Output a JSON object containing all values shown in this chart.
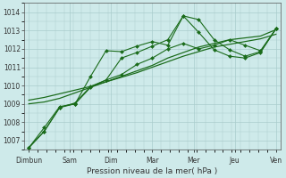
{
  "xlabel": "Pression niveau de la mer( hPa )",
  "background_color": "#ceeaea",
  "grid_color": "#aacccc",
  "line_color": "#1a6b1a",
  "ylim": [
    1006.5,
    1014.5
  ],
  "xtick_labels": [
    "Dimbun",
    "Sam",
    "Dim",
    "Mar",
    "Mer",
    "Jeu",
    "Ven"
  ],
  "ytick_values": [
    1007,
    1008,
    1009,
    1010,
    1011,
    1012,
    1013,
    1014
  ],
  "series": [
    [
      1006.6,
      1007.7,
      1008.85,
      1009.0,
      1010.5,
      1011.9,
      1011.85,
      1012.15,
      1012.4,
      1012.2,
      1013.8,
      1012.9,
      1011.95,
      1011.6,
      1011.5,
      1011.8,
      1013.1
    ],
    [
      1006.6,
      1007.5,
      1008.8,
      1009.0,
      1009.9,
      1010.3,
      1010.6,
      1011.15,
      1011.5,
      1012.0,
      1012.3,
      1012.0,
      1012.2,
      1012.5,
      1012.2,
      1011.9,
      1013.1
    ],
    [
      1006.6,
      1007.5,
      1008.8,
      1009.05,
      1009.95,
      1010.3,
      1011.5,
      1011.8,
      1012.15,
      1012.5,
      1013.8,
      1013.6,
      1012.5,
      1011.95,
      1011.6,
      1011.85,
      1013.1
    ],
    [
      1009.0,
      1009.1,
      1009.3,
      1009.6,
      1009.9,
      1010.2,
      1010.5,
      1010.8,
      1011.1,
      1011.5,
      1011.8,
      1012.1,
      1012.3,
      1012.5,
      1012.6,
      1012.7,
      1013.05
    ],
    [
      1009.2,
      1009.35,
      1009.55,
      1009.75,
      1009.95,
      1010.2,
      1010.45,
      1010.7,
      1011.0,
      1011.3,
      1011.6,
      1011.85,
      1012.1,
      1012.25,
      1012.4,
      1012.55,
      1012.8
    ]
  ],
  "marker": "D",
  "marker_size": 2.0,
  "linewidth": 0.8,
  "smooth_series": [
    3,
    4
  ]
}
